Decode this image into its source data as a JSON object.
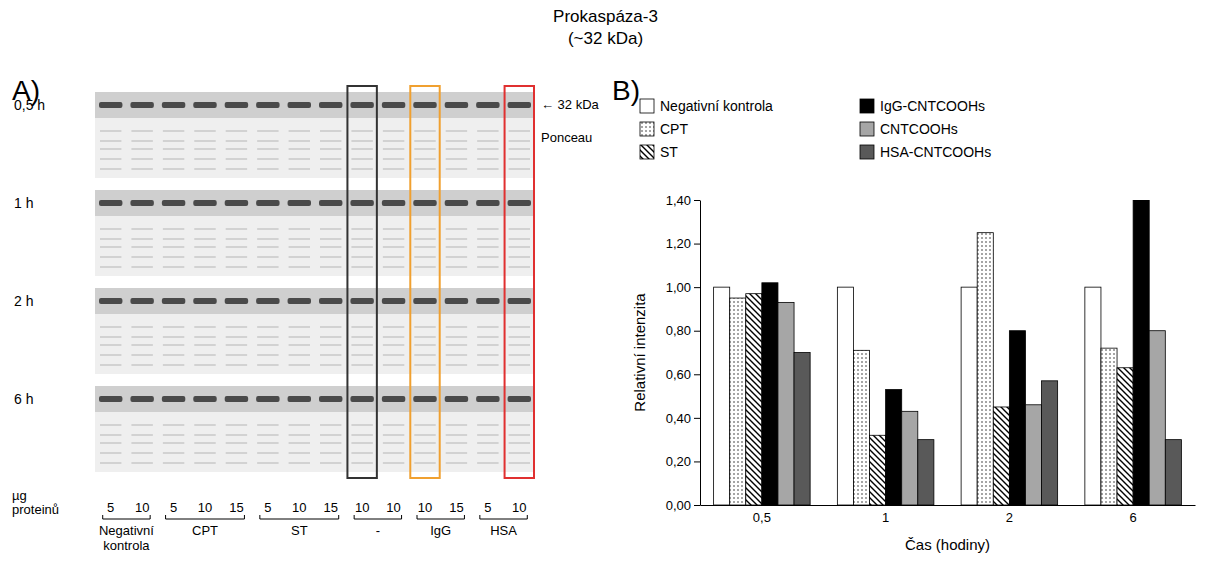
{
  "figure": {
    "title": "Prokaspáza-3",
    "subtitle": "(~32 kDa)",
    "panel_labels": [
      "A)",
      "B)"
    ]
  },
  "blot": {
    "times": [
      "0,5 h",
      "1 h",
      "2 h",
      "6 h"
    ],
    "marker_label": "← 32 kDa",
    "stain_label": "Ponceau",
    "amount_label": "µg proteinů",
    "groups": [
      {
        "label": "Negativní kontrola",
        "amounts": [
          5,
          10
        ]
      },
      {
        "label": "CPT",
        "amounts": [
          5,
          10,
          15
        ]
      },
      {
        "label": "ST",
        "amounts": [
          5,
          10,
          15
        ]
      },
      {
        "label": "-",
        "amounts": [
          10,
          10
        ]
      },
      {
        "label": "IgG",
        "amounts": [
          10,
          15
        ]
      },
      {
        "label": "HSA",
        "amounts": [
          5,
          10
        ]
      }
    ]
  },
  "chart_data": {
    "type": "bar",
    "x_label": "Čas (hodiny)",
    "y_label": "Relativní intenzita",
    "categories": [
      "0,5",
      "1",
      "2",
      "6"
    ],
    "series": [
      {
        "name": "Negativní kontrola",
        "color": "#ffffff",
        "values": [
          1.0,
          1.0,
          1.0,
          1.0
        ]
      },
      {
        "name": "CPT",
        "color": "#ffffff",
        "values": [
          0.95,
          0.71,
          1.25,
          0.72
        ]
      },
      {
        "name": "ST",
        "color": "#ffffff",
        "values": [
          0.97,
          0.32,
          0.45,
          0.63
        ]
      },
      {
        "name": "IgG-CNTCOOHs",
        "color": "#000000",
        "values": [
          1.02,
          0.53,
          0.8,
          1.4
        ]
      },
      {
        "name": "CNTCOOHs",
        "color": "#a6a6a6",
        "values": [
          0.93,
          0.43,
          0.46,
          0.8
        ]
      },
      {
        "name": "HSA-CNTCOOHs",
        "color": "#595959",
        "values": [
          0.7,
          0.3,
          0.57,
          0.3
        ]
      }
    ],
    "ylim": [
      0,
      1.4
    ],
    "yticks": [
      {
        "value": 0,
        "label": "0,00"
      },
      {
        "value": 0.2,
        "label": "0,20"
      },
      {
        "value": 0.4,
        "label": "0,40"
      },
      {
        "value": 0.6,
        "label": "0,60"
      },
      {
        "value": 0.8,
        "label": "0,80"
      },
      {
        "value": 1.0,
        "label": "1,00"
      },
      {
        "value": 1.2,
        "label": "1,20"
      },
      {
        "value": 1.4,
        "label": "1,40"
      }
    ],
    "grid": false,
    "legend": "top"
  }
}
